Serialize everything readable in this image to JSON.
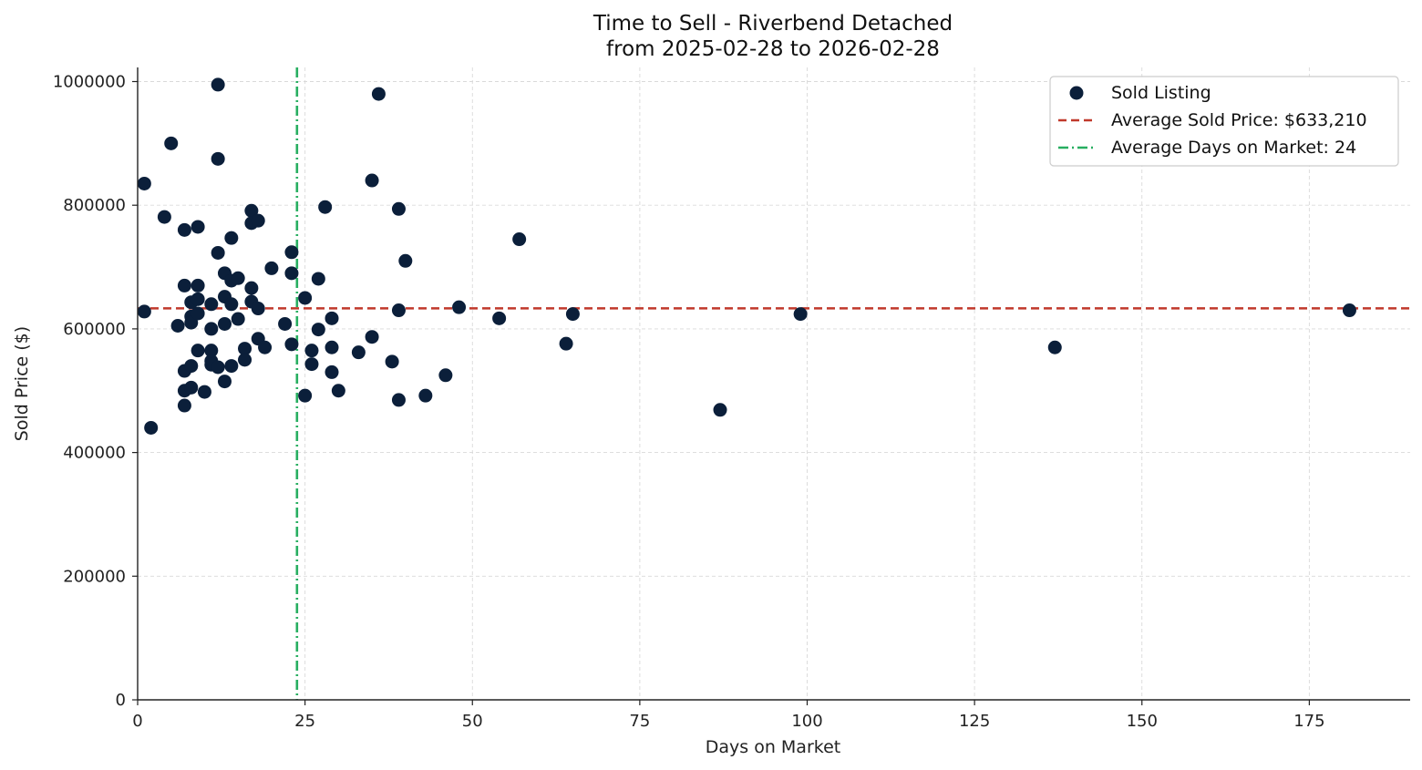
{
  "chart_data": {
    "type": "scatter",
    "title": "Time to Sell - Riverbend Detached",
    "subtitle": "from 2025-02-28 to 2026-02-28",
    "xlabel": "Days on Market",
    "ylabel": "Sold Price ($)",
    "xlim": [
      0,
      190
    ],
    "ylim": [
      0,
      1020000
    ],
    "xticks": [
      0,
      25,
      50,
      75,
      100,
      125,
      150,
      175
    ],
    "yticks": [
      0,
      200000,
      400000,
      600000,
      800000,
      1000000
    ],
    "grid": true,
    "legend_position": "top-right",
    "colors": {
      "points": "#0b1f3a",
      "avg_price_line": "#c0392b",
      "avg_days_line": "#27ae60",
      "grid": "#d9d9d9",
      "axis": "#222222"
    },
    "series": [
      {
        "name": "Sold Listing",
        "points": [
          [
            1,
            835000
          ],
          [
            1,
            628000
          ],
          [
            2,
            440000
          ],
          [
            4,
            781000
          ],
          [
            5,
            900000
          ],
          [
            6,
            605000
          ],
          [
            7,
            760000
          ],
          [
            7,
            670000
          ],
          [
            7,
            532000
          ],
          [
            7,
            500000
          ],
          [
            7,
            476000
          ],
          [
            8,
            643000
          ],
          [
            8,
            620000
          ],
          [
            8,
            610000
          ],
          [
            8,
            540000
          ],
          [
            8,
            505000
          ],
          [
            9,
            765000
          ],
          [
            9,
            670000
          ],
          [
            9,
            648000
          ],
          [
            9,
            625000
          ],
          [
            9,
            565000
          ],
          [
            10,
            498000
          ],
          [
            11,
            640000
          ],
          [
            11,
            600000
          ],
          [
            11,
            565000
          ],
          [
            11,
            548000
          ],
          [
            11,
            542000
          ],
          [
            12,
            995000
          ],
          [
            12,
            875000
          ],
          [
            12,
            723000
          ],
          [
            12,
            538000
          ],
          [
            13,
            690000
          ],
          [
            13,
            652000
          ],
          [
            13,
            608000
          ],
          [
            13,
            515000
          ],
          [
            14,
            747000
          ],
          [
            14,
            678000
          ],
          [
            14,
            640000
          ],
          [
            14,
            540000
          ],
          [
            15,
            682000
          ],
          [
            15,
            616000
          ],
          [
            16,
            568000
          ],
          [
            16,
            550000
          ],
          [
            17,
            791000
          ],
          [
            17,
            771000
          ],
          [
            17,
            666000
          ],
          [
            17,
            644000
          ],
          [
            18,
            775000
          ],
          [
            18,
            633000
          ],
          [
            18,
            584000
          ],
          [
            19,
            570000
          ],
          [
            20,
            698000
          ],
          [
            22,
            608000
          ],
          [
            23,
            724000
          ],
          [
            23,
            690000
          ],
          [
            23,
            575000
          ],
          [
            25,
            650000
          ],
          [
            25,
            492000
          ],
          [
            26,
            565000
          ],
          [
            26,
            543000
          ],
          [
            27,
            681000
          ],
          [
            27,
            599000
          ],
          [
            28,
            797000
          ],
          [
            29,
            617000
          ],
          [
            29,
            570000
          ],
          [
            29,
            530000
          ],
          [
            30,
            500000
          ],
          [
            33,
            562000
          ],
          [
            35,
            840000
          ],
          [
            35,
            587000
          ],
          [
            36,
            980000
          ],
          [
            38,
            547000
          ],
          [
            39,
            794000
          ],
          [
            39,
            630000
          ],
          [
            39,
            485000
          ],
          [
            40,
            710000
          ],
          [
            43,
            492000
          ],
          [
            46,
            525000
          ],
          [
            48,
            635000
          ],
          [
            54,
            617000
          ],
          [
            57,
            745000
          ],
          [
            64,
            576000
          ],
          [
            65,
            624000
          ],
          [
            87,
            469000
          ],
          [
            99,
            624000
          ],
          [
            137,
            570000
          ],
          [
            181,
            630000
          ]
        ]
      }
    ],
    "reference_lines": {
      "avg_price": 633210,
      "avg_days": 23.8
    },
    "legend": {
      "sold": "Sold Listing",
      "avg_price": "Average Sold Price: $633,210",
      "avg_days": "Average Days on Market: 24"
    }
  }
}
